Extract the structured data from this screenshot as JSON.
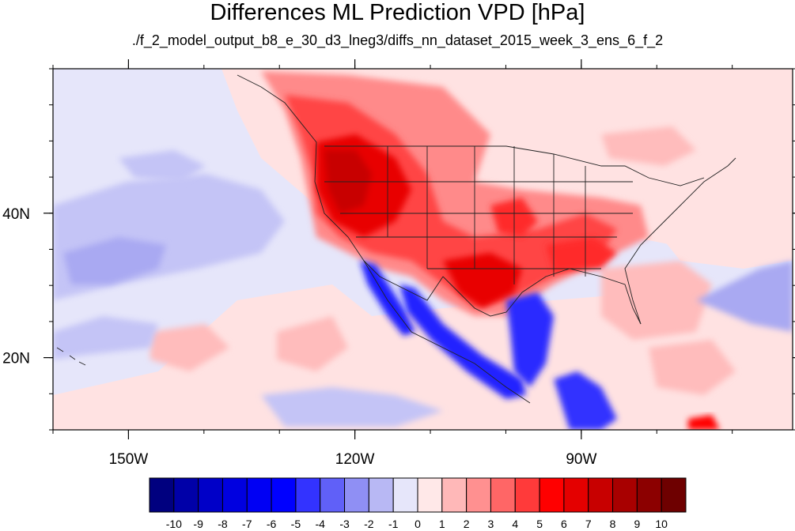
{
  "title": "Differences ML Prediction VPD [hPa]",
  "subtitle": "./f_2_model_output_b8_e_30_d3_lneg3/diffs_nn_dataset_2015_week_3_ens_6_f_2",
  "map": {
    "lon_range": [
      -160,
      -62
    ],
    "lat_range": [
      10,
      60
    ],
    "lon_ticks": [
      {
        "value": -150,
        "label": "150W"
      },
      {
        "value": -120,
        "label": "120W"
      },
      {
        "value": -90,
        "label": "90W"
      }
    ],
    "lat_ticks": [
      {
        "value": 40,
        "label": "40N"
      },
      {
        "value": 20,
        "label": "20N"
      }
    ],
    "background_color": "#e6e6fa"
  },
  "colorbar": {
    "labels": [
      "-10",
      "-9",
      "-8",
      "-7",
      "-6",
      "-5",
      "-4",
      "-3",
      "-2",
      "-1",
      "0",
      "1",
      "2",
      "3",
      "4",
      "5",
      "6",
      "7",
      "8",
      "9",
      "10"
    ],
    "colors": [
      "#00007f",
      "#0000a8",
      "#0000c8",
      "#0000e0",
      "#0000f4",
      "#0000ff",
      "#3333ff",
      "#6060f8",
      "#8f8ff4",
      "#b8b8f4",
      "#e6e6fa",
      "#ffe8e8",
      "#ffb8b8",
      "#ff9090",
      "#ff6666",
      "#ff3a3a",
      "#ff0000",
      "#e40000",
      "#c80000",
      "#a80000",
      "#8c0000",
      "#6e0000"
    ]
  }
}
